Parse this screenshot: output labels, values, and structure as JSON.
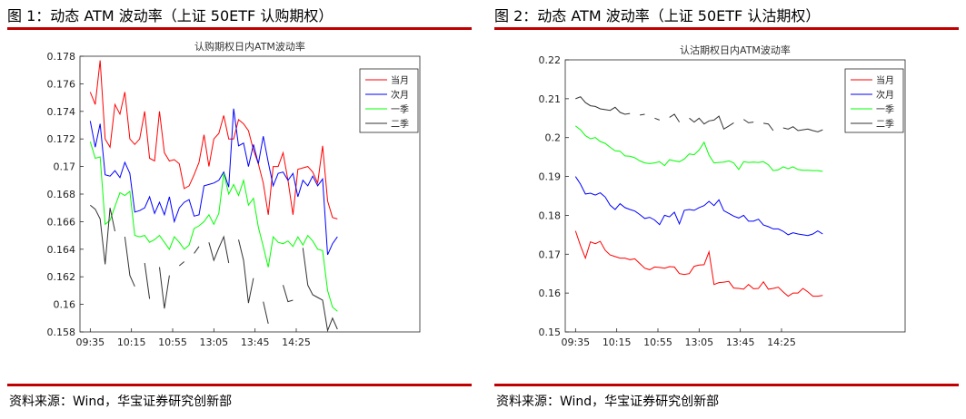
{
  "figures": [
    {
      "caption": "图 1：动态 ATM 波动率（上证 50ETF 认购期权）",
      "source": "资料来源：Wind，华宝证券研究创新部",
      "chart_data": {
        "type": "line",
        "title": "认购期权日内ATM波动率",
        "xlabel": "",
        "ylabel": "",
        "xlim": [
          0,
          33
        ],
        "ylim": [
          0.158,
          0.178
        ],
        "grid": false,
        "legend_position": "top-right",
        "x_ticks": [
          {
            "x": 1,
            "label": "09:35"
          },
          {
            "x": 5,
            "label": "10:15"
          },
          {
            "x": 9,
            "label": "10:55"
          },
          {
            "x": 13,
            "label": "13:05"
          },
          {
            "x": 17,
            "label": "13:45"
          },
          {
            "x": 21,
            "label": "14:25"
          }
        ],
        "y_ticks": [
          0.158,
          0.16,
          0.162,
          0.164,
          0.166,
          0.168,
          0.17,
          0.172,
          0.174,
          0.176,
          0.178
        ],
        "y_tick_labels": [
          "0.158",
          "0.16",
          "0.162",
          "0.164",
          "0.166",
          "0.168",
          "0.17",
          "0.172",
          "0.174",
          "0.176",
          "0.178"
        ],
        "series": [
          {
            "name": "当月",
            "color": "#ff0000",
            "values": [
              0.1754,
              0.1745,
              0.1777,
              0.172,
              0.1714,
              0.1745,
              0.1738,
              0.1754,
              0.172,
              0.1716,
              0.172,
              0.174,
              0.1706,
              0.1704,
              0.174,
              0.171,
              0.1704,
              0.1705,
              0.1702,
              0.1684,
              0.1686,
              0.1694,
              0.1703,
              0.1723,
              0.17,
              0.172,
              0.1724,
              0.1737,
              0.172,
              0.172,
              0.1734,
              0.1731,
              0.1726,
              0.1712,
              0.1702,
              0.1688,
              0.1665,
              0.17,
              0.17,
              0.171,
              0.169,
              0.1665,
              0.1698,
              0.1699,
              0.17,
              0.1696,
              0.1688,
              0.1715,
              0.1675,
              0.1663,
              0.1662
            ]
          },
          {
            "name": "次月",
            "color": "#0000ff",
            "values": [
              0.1733,
              0.1714,
              0.1731,
              0.1694,
              0.1693,
              0.1697,
              0.1692,
              0.1703,
              0.1695,
              0.1667,
              0.1668,
              0.167,
              0.1678,
              0.1666,
              0.1674,
              0.1665,
              0.1678,
              0.166,
              0.167,
              0.1674,
              0.1676,
              0.1664,
              0.1665,
              0.1686,
              0.1687,
              0.1688,
              0.169,
              0.1696,
              0.1685,
              0.1742,
              0.1715,
              0.1717,
              0.17,
              0.1716,
              0.1702,
              0.1722,
              0.1703,
              0.1686,
              0.1695,
              0.1696,
              0.169,
              0.1695,
              0.1678,
              0.169,
              0.1686,
              0.1693,
              0.1686,
              0.1691,
              0.1636,
              0.1644,
              0.1649
            ]
          },
          {
            "name": "一季",
            "color": "#00ff00",
            "values": [
              0.1718,
              0.1706,
              0.1707,
              0.1658,
              0.1661,
              0.1671,
              0.1681,
              0.1679,
              0.1682,
              0.165,
              0.1649,
              0.165,
              0.1645,
              0.1647,
              0.165,
              0.1645,
              0.164,
              0.1649,
              0.1645,
              0.164,
              0.1643,
              0.1655,
              0.1657,
              0.166,
              0.1665,
              0.1658,
              0.1666,
              0.1695,
              0.168,
              0.1687,
              0.1679,
              0.169,
              0.1672,
              0.1677,
              0.1656,
              0.1642,
              0.1627,
              0.1649,
              0.1645,
              0.1644,
              0.1646,
              0.1642,
              0.1649,
              0.1643,
              0.165,
              0.1646,
              0.164,
              0.1639,
              0.161,
              0.1598,
              0.1595
            ]
          },
          {
            "name": "二季",
            "color": "#333333",
            "values": [
              0.1672,
              0.1669,
              0.1662,
              0.1629,
              0.167,
              0.1653,
              null,
              0.1649,
              0.1621,
              0.1613,
              null,
              0.163,
              0.1604,
              null,
              0.1627,
              0.1597,
              0.1621,
              null,
              0.1628,
              0.1631,
              null,
              0.1637,
              0.1642,
              null,
              0.1645,
              0.1632,
              0.1641,
              0.1649,
              0.163,
              null,
              0.1647,
              0.1632,
              0.1601,
              0.1619,
              null,
              0.1602,
              0.1586,
              null,
              null,
              0.1614,
              0.1602,
              0.1603,
              null,
              0.1641,
              0.1614,
              0.1607,
              0.1605,
              0.1603,
              0.1581,
              0.159,
              0.1582
            ]
          }
        ]
      }
    },
    {
      "caption": "图 2：动态 ATM 波动率（上证 50ETF 认沽期权）",
      "source": "资料来源：Wind，华宝证券研究创新部",
      "chart_data": {
        "type": "line",
        "title": "认沽期权日内ATM波动率",
        "xlabel": "",
        "ylabel": "",
        "xlim": [
          0,
          33
        ],
        "ylim": [
          0.15,
          0.22
        ],
        "grid": false,
        "legend_position": "top-right",
        "x_ticks": [
          {
            "x": 1,
            "label": "09:35"
          },
          {
            "x": 5,
            "label": "10:15"
          },
          {
            "x": 9,
            "label": "10:55"
          },
          {
            "x": 13,
            "label": "13:05"
          },
          {
            "x": 17,
            "label": "13:45"
          },
          {
            "x": 21,
            "label": "14:25"
          }
        ],
        "y_ticks": [
          0.15,
          0.16,
          0.17,
          0.18,
          0.19,
          0.2,
          0.21,
          0.22
        ],
        "y_tick_labels": [
          "0.15",
          "0.16",
          "0.17",
          "0.18",
          "0.19",
          "0.2",
          "0.21",
          "0.22"
        ],
        "series": [
          {
            "name": "当月",
            "color": "#ff0000",
            "values": [
              0.176,
              0.1722,
              0.169,
              0.1732,
              0.1727,
              0.1733,
              0.171,
              0.1698,
              0.1694,
              0.169,
              0.169,
              0.1686,
              0.1688,
              0.1676,
              0.1664,
              0.166,
              0.1667,
              0.1666,
              0.1664,
              0.1668,
              0.1667,
              0.165,
              0.1648,
              0.165,
              0.1669,
              0.1672,
              0.1673,
              0.1706,
              0.1622,
              0.1627,
              0.1628,
              0.163,
              0.1613,
              0.1612,
              0.161,
              0.1622,
              0.1611,
              0.1612,
              0.1629,
              0.161,
              0.1612,
              0.1615,
              0.1603,
              0.1592,
              0.16,
              0.16,
              0.1612,
              0.1603,
              0.1592,
              0.1592,
              0.1594
            ]
          },
          {
            "name": "次月",
            "color": "#0000ff",
            "values": [
              0.19,
              0.188,
              0.1855,
              0.1857,
              0.1852,
              0.1858,
              0.1847,
              0.1826,
              0.1815,
              0.183,
              0.182,
              0.1815,
              0.1811,
              0.1802,
              0.1792,
              0.1795,
              0.1788,
              0.1776,
              0.18,
              0.1796,
              0.1808,
              0.1778,
              0.1813,
              0.1815,
              0.1813,
              0.182,
              0.1825,
              0.1836,
              0.1825,
              0.184,
              0.1812,
              0.1805,
              0.1798,
              0.1793,
              0.18,
              0.1785,
              0.1785,
              0.179,
              0.1775,
              0.1771,
              0.1765,
              0.1765,
              0.1759,
              0.175,
              0.1755,
              0.1752,
              0.175,
              0.1748,
              0.1752,
              0.176,
              0.1752
            ]
          },
          {
            "name": "一季",
            "color": "#00ff00",
            "values": [
              0.203,
              0.202,
              0.2005,
              0.1997,
              0.2,
              0.199,
              0.1985,
              0.1975,
              0.1966,
              0.1965,
              0.1953,
              0.1952,
              0.1948,
              0.194,
              0.1935,
              0.1933,
              0.1935,
              0.1938,
              0.1928,
              0.1943,
              0.194,
              0.1938,
              0.1945,
              0.1958,
              0.1956,
              0.1968,
              0.1988,
              0.1955,
              0.1935,
              0.1936,
              0.1937,
              0.194,
              0.1935,
              0.1918,
              0.1938,
              0.1936,
              0.1937,
              0.1936,
              0.1938,
              0.193,
              0.1915,
              0.1917,
              0.1925,
              0.192,
              0.1925,
              0.1918,
              0.1916,
              0.1916,
              0.1915,
              0.1915,
              0.1913
            ]
          },
          {
            "name": "二季",
            "color": "#333333",
            "values": [
              0.21,
              0.2105,
              0.209,
              0.2082,
              0.208,
              0.2074,
              0.2072,
              0.207,
              0.2078,
              0.2065,
              0.206,
              0.2062,
              null,
              0.2058,
              0.206,
              null,
              0.205,
              0.2045,
              null,
              0.2052,
              0.206,
              0.204,
              null,
              0.205,
              0.204,
              0.205,
              0.2035,
              0.2043,
              0.2045,
              0.2055,
              0.2022,
              0.203,
              0.2038,
              null,
              0.2047,
              0.2038,
              0.204,
              null,
              0.2037,
              0.2035,
              0.2018,
              null,
              0.2025,
              0.2022,
              0.2028,
              0.2018,
              0.202,
              0.2022,
              0.2018,
              0.2015,
              0.202
            ]
          }
        ]
      }
    }
  ]
}
